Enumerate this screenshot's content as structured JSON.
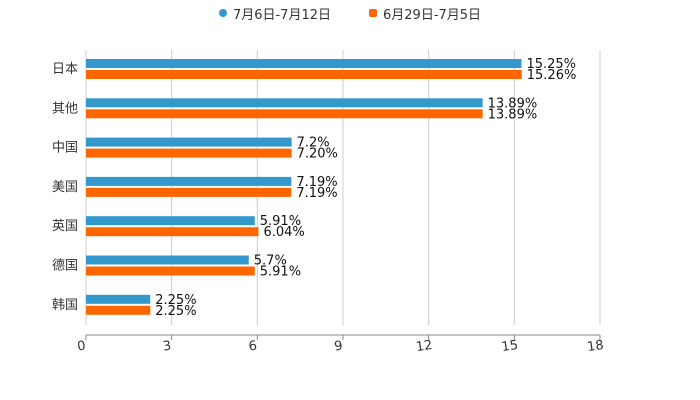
{
  "legend": {
    "series_a": "7月6日-7月12日",
    "series_b": "6月29日-7月5日"
  },
  "colors": {
    "series_a": "#3399cc",
    "series_b": "#ff6600",
    "grid": "#cccccc",
    "axis": "#888888"
  },
  "chart_data": {
    "type": "bar",
    "orientation": "horizontal",
    "title": "",
    "xlabel": "",
    "ylabel": "",
    "categories": [
      "日本",
      "其他",
      "中国",
      "美国",
      "英国",
      "德国",
      "韩国"
    ],
    "series": [
      {
        "name": "7月6日-7月12日",
        "values": [
          15.25,
          13.89,
          7.2,
          7.19,
          5.91,
          5.7,
          2.25
        ],
        "labels": [
          "15.25%",
          "13.89%",
          "7.2%",
          "7.19%",
          "5.91%",
          "5.7%",
          "2.25%"
        ]
      },
      {
        "name": "6月29日-7月5日",
        "values": [
          15.26,
          13.89,
          7.2,
          7.19,
          6.04,
          5.91,
          2.25
        ],
        "labels": [
          "15.26%",
          "13.89%",
          "7.20%",
          "7.19%",
          "6.04%",
          "5.91%",
          "2.25%"
        ]
      }
    ],
    "xlim": [
      0,
      18
    ],
    "xticks": [
      "0",
      "3",
      "6",
      "9",
      "12",
      "15",
      "18"
    ],
    "grid": true,
    "legend_position": "top"
  }
}
